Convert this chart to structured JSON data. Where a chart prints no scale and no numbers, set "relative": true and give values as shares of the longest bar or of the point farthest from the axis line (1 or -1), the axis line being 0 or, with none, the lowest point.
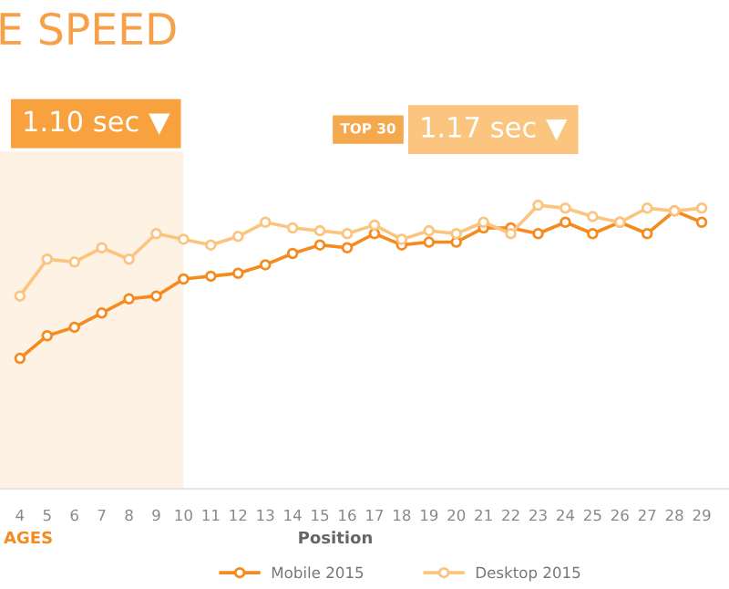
{
  "chart_data": {
    "type": "line",
    "title": "E SPEED",
    "xlabel": "Position",
    "relative": true,
    "x": [
      4,
      5,
      6,
      7,
      8,
      9,
      10,
      11,
      12,
      13,
      14,
      15,
      16,
      17,
      18,
      19,
      20,
      21,
      22,
      23,
      24,
      25,
      26,
      27,
      28,
      29
    ],
    "xlim": [
      3.27,
      30
    ],
    "xticks": [
      4,
      5,
      6,
      7,
      8,
      9,
      10,
      11,
      12,
      13,
      14,
      15,
      16,
      17,
      18,
      19,
      20,
      21,
      22,
      23,
      24,
      25,
      26,
      27,
      28,
      29
    ],
    "series": [
      {
        "name": "Mobile 2015",
        "color": "#f58a1f",
        "values": [
          0.46,
          0.54,
          0.57,
          0.62,
          0.67,
          0.68,
          0.74,
          0.75,
          0.76,
          0.79,
          0.83,
          0.86,
          0.85,
          0.9,
          0.86,
          0.87,
          0.87,
          0.92,
          0.92,
          0.9,
          0.94,
          0.9,
          0.94,
          0.9,
          0.98,
          0.94
        ]
      },
      {
        "name": "Desktop 2015",
        "color": "#fbc47f",
        "values": [
          0.68,
          0.81,
          0.8,
          0.85,
          0.81,
          0.9,
          0.88,
          0.86,
          0.89,
          0.94,
          0.92,
          0.91,
          0.9,
          0.93,
          0.88,
          0.91,
          0.9,
          0.94,
          0.9,
          1.0,
          0.99,
          0.96,
          0.94,
          0.99,
          0.98,
          0.99
        ]
      }
    ],
    "bands": [
      {
        "axis": "x",
        "from": 3.27,
        "to": 10,
        "color": "#fdf2e4"
      }
    ],
    "annotations": [
      "1.10 sec ▼",
      "TOP 30",
      "1.17 sec ▼",
      "AGES"
    ],
    "marker": "circle",
    "line_style": "solid",
    "legend": "bottom"
  }
}
